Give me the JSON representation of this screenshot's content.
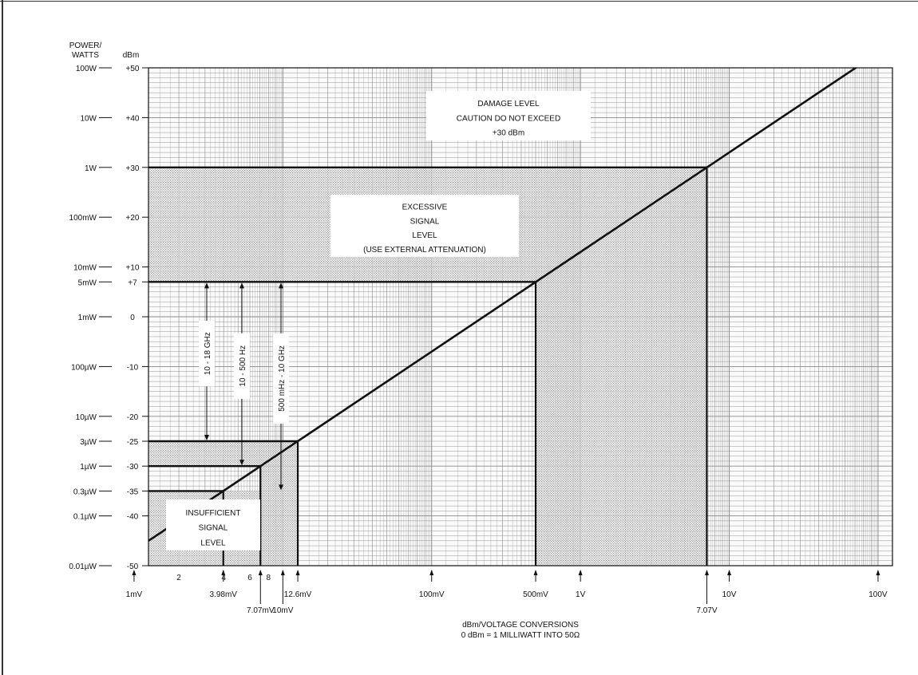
{
  "chart_data": {
    "type": "line",
    "title": "",
    "xlabel": "dBm/VOLTAGE CONVERSIONS",
    "xlabel_sub": "0 dBm = 1 MILLIWATT INTO 50Ω",
    "y_header_power": "POWER/\nWATTS",
    "y_header_dbm": "dBm",
    "x_scale": "log",
    "xlim": [
      0.00125,
      125
    ],
    "ylim": [
      -50,
      50
    ],
    "grid": true,
    "series": [
      {
        "x": [
          0.0007,
          0.003162,
          0.01,
          0.03162,
          0.1,
          0.3162,
          1,
          3.162,
          10,
          31.62,
          100
        ],
        "y": [
          -50,
          -37,
          -27,
          -17,
          -7,
          3,
          13,
          23,
          33,
          43,
          53
        ]
      }
    ],
    "power_ticks": [
      {
        "dbm": 50,
        "label": "100W"
      },
      {
        "dbm": 40,
        "label": "10W"
      },
      {
        "dbm": 30,
        "label": "1W"
      },
      {
        "dbm": 20,
        "label": "100mW"
      },
      {
        "dbm": 10,
        "label": "10mW"
      },
      {
        "dbm": 7,
        "label": "5mW"
      },
      {
        "dbm": 0,
        "label": "1mW"
      },
      {
        "dbm": -10,
        "label": "100µW"
      },
      {
        "dbm": -20,
        "label": "10µW"
      },
      {
        "dbm": -25,
        "label": "3µW"
      },
      {
        "dbm": -30,
        "label": "1µW"
      },
      {
        "dbm": -35,
        "label": "0.3µW"
      },
      {
        "dbm": -40,
        "label": "0.1µW"
      },
      {
        "dbm": -50,
        "label": "0.01µW"
      }
    ],
    "dbm_ticks": [
      {
        "dbm": 50,
        "label": "+50"
      },
      {
        "dbm": 40,
        "label": "+40"
      },
      {
        "dbm": 30,
        "label": "+30"
      },
      {
        "dbm": 20,
        "label": "+20"
      },
      {
        "dbm": 10,
        "label": "+10"
      },
      {
        "dbm": 7,
        "label": "+7"
      },
      {
        "dbm": 0,
        "label": "0"
      },
      {
        "dbm": -10,
        "label": "-10"
      },
      {
        "dbm": -20,
        "label": "-20"
      },
      {
        "dbm": -25,
        "label": "-25"
      },
      {
        "dbm": -30,
        "label": "-30"
      },
      {
        "dbm": -35,
        "label": "-35"
      },
      {
        "dbm": -40,
        "label": "-40"
      },
      {
        "dbm": -50,
        "label": "-50"
      }
    ],
    "x_minor_ticks": [
      {
        "volts": 0.002,
        "label": "2"
      },
      {
        "volts": 0.004,
        "label": "4"
      },
      {
        "volts": 0.006,
        "label": "6"
      },
      {
        "volts": 0.008,
        "label": "8"
      }
    ],
    "x_ticks": [
      {
        "volts": 0.001,
        "label": "1mV",
        "row": 1
      },
      {
        "volts": 0.00398,
        "label": "3.98mV",
        "row": 1
      },
      {
        "volts": 0.00707,
        "label": "7.07mV",
        "row": 2
      },
      {
        "volts": 0.01,
        "label": "10mV",
        "row": 2
      },
      {
        "volts": 0.0126,
        "label": "12.6mV",
        "row": 1
      },
      {
        "volts": 0.1,
        "label": "100mV",
        "row": 1
      },
      {
        "volts": 0.5,
        "label": "500mV",
        "row": 1
      },
      {
        "volts": 1,
        "label": "1V",
        "row": 1
      },
      {
        "volts": 7.07,
        "label": "7.07V",
        "row": 2
      },
      {
        "volts": 10,
        "label": "10V",
        "row": 1
      },
      {
        "volts": 100,
        "label": "100V",
        "row": 1
      }
    ],
    "drop_lines": [
      {
        "volts": 0.00398,
        "dbm": -35
      },
      {
        "volts": 0.00707,
        "dbm": -30
      },
      {
        "volts": 0.0126,
        "dbm": -25
      },
      {
        "volts": 0.5,
        "dbm": 7
      },
      {
        "volts": 7.07,
        "dbm": 30
      }
    ],
    "regions": [
      {
        "name": "damage",
        "dbm_min": 30,
        "dbm_max": 50,
        "label": [
          "DAMAGE LEVEL",
          "CAUTION DO NOT EXCEED",
          "+30 dBm"
        ]
      },
      {
        "name": "excessive",
        "dbm_min": 7,
        "dbm_max": 30,
        "label": [
          "EXCESSIVE",
          "SIGNAL",
          "LEVEL",
          "(USE EXTERNAL ATTENUATION)"
        ]
      },
      {
        "name": "insufficient",
        "dbm_min": -50,
        "dbm_max": -35,
        "label": [
          "INSUFFICIENT",
          "SIGNAL",
          "LEVEL"
        ]
      }
    ],
    "ranges": [
      {
        "label": "10 - 18 GHz",
        "dbm_min": -25,
        "dbm_max": 7
      },
      {
        "label": "10 - 500 Hz",
        "dbm_min": -30,
        "dbm_max": 7
      },
      {
        "label": "500 mHz - 10 GHz",
        "dbm_min": -35,
        "dbm_max": 7
      }
    ],
    "colors": {
      "grid": "#8a8a8a",
      "shade": "#b9b9b9",
      "ink": "#111111"
    }
  }
}
